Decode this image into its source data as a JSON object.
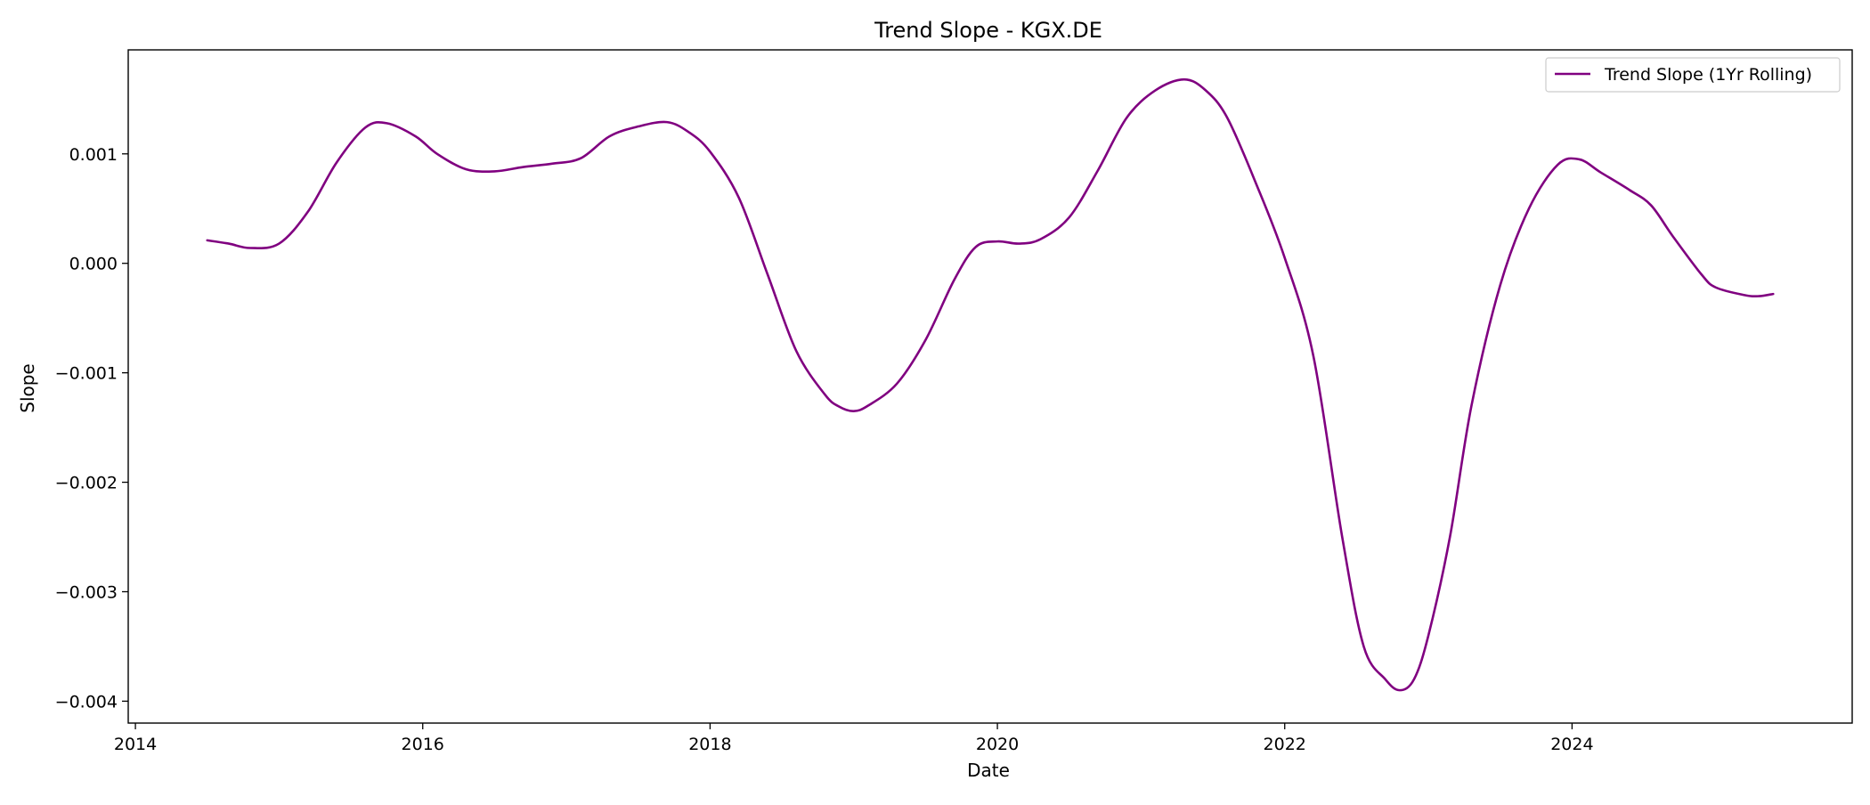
{
  "chart_data": {
    "type": "line",
    "title": "Trend Slope - KGX.DE",
    "xlabel": "Date",
    "ylabel": "Slope",
    "x_ticks": [
      "2014",
      "2016",
      "2018",
      "2020",
      "2022",
      "2024"
    ],
    "y_ticks": [
      "0.001",
      "0.000",
      "−0.001",
      "−0.002",
      "−0.003",
      "−0.004"
    ],
    "x_tick_values": [
      2014,
      2016,
      2018,
      2020,
      2022,
      2024
    ],
    "y_tick_values": [
      0.001,
      0.0,
      -0.001,
      -0.002,
      -0.003,
      -0.004
    ],
    "xlim": [
      2013.95,
      2025.95
    ],
    "ylim": [
      -0.0042,
      0.00195
    ],
    "grid": false,
    "legend_position": "top-right",
    "series": [
      {
        "name": "Trend Slope (1Yr Rolling)",
        "color": "#800080",
        "x": [
          2014.5,
          2014.65,
          2014.8,
          2015.0,
          2015.2,
          2015.4,
          2015.6,
          2015.75,
          2015.95,
          2016.1,
          2016.3,
          2016.5,
          2016.7,
          2016.9,
          2017.1,
          2017.3,
          2017.5,
          2017.7,
          2017.85,
          2018.0,
          2018.2,
          2018.4,
          2018.6,
          2018.8,
          2018.9,
          2019.0,
          2019.1,
          2019.3,
          2019.5,
          2019.7,
          2019.85,
          2020.0,
          2020.15,
          2020.3,
          2020.5,
          2020.7,
          2020.9,
          2021.1,
          2021.3,
          2021.45,
          2021.6,
          2021.8,
          2022.0,
          2022.2,
          2022.4,
          2022.55,
          2022.7,
          2022.8,
          2022.9,
          2023.0,
          2023.15,
          2023.3,
          2023.5,
          2023.7,
          2023.9,
          2024.05,
          2024.2,
          2024.4,
          2024.55,
          2024.7,
          2024.9,
          2025.0,
          2025.2,
          2025.3,
          2025.4
        ],
        "y": [
          0.00021,
          0.00018,
          0.00014,
          0.00018,
          0.00047,
          0.00092,
          0.00124,
          0.00128,
          0.00116,
          0.001,
          0.00086,
          0.00084,
          0.00088,
          0.00091,
          0.00096,
          0.00116,
          0.00125,
          0.00129,
          0.0012,
          0.00102,
          0.0006,
          -0.0001,
          -0.0008,
          -0.0012,
          -0.00131,
          -0.00135,
          -0.0013,
          -0.0011,
          -0.0007,
          -0.00015,
          0.00015,
          0.0002,
          0.00018,
          0.00022,
          0.00042,
          0.00085,
          0.00133,
          0.00158,
          0.00168,
          0.00158,
          0.00133,
          0.00073,
          5e-05,
          -0.00085,
          -0.0025,
          -0.0035,
          -0.0038,
          -0.0039,
          -0.0038,
          -0.0034,
          -0.0025,
          -0.0013,
          -0.0002,
          0.0005,
          0.0009,
          0.00095,
          0.00083,
          0.00067,
          0.00053,
          0.00025,
          -0.0001,
          -0.00022,
          -0.00029,
          -0.0003,
          -0.00028
        ]
      }
    ]
  }
}
